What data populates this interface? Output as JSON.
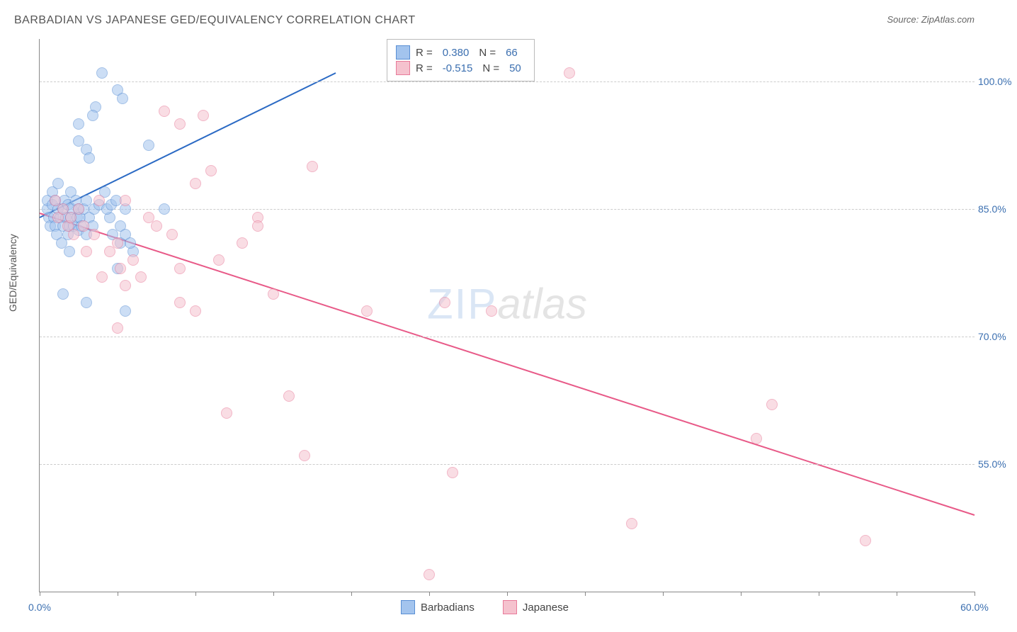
{
  "title": "BARBADIAN VS JAPANESE GED/EQUIVALENCY CORRELATION CHART",
  "source": "Source: ZipAtlas.com",
  "ylabel": "GED/Equivalency",
  "watermark_zip": "ZIP",
  "watermark_atlas": "atlas",
  "chart": {
    "type": "scatter",
    "background_color": "#ffffff",
    "grid_color": "#cccccc",
    "axis_color": "#888888",
    "xlim": [
      0,
      60
    ],
    "ylim": [
      40,
      105
    ],
    "x_ticks": [
      0,
      5,
      10,
      15,
      20,
      25,
      30,
      35,
      40,
      45,
      50,
      55,
      60
    ],
    "x_tick_labels": {
      "0": "0.0%",
      "60": "60.0%"
    },
    "y_gridlines": [
      55,
      70,
      85,
      100
    ],
    "y_tick_labels": {
      "55": "55.0%",
      "70": "70.0%",
      "85": "85.0%",
      "100": "100.0%"
    },
    "tick_label_color": "#3b6fb0",
    "tick_label_fontsize": 14,
    "title_color": "#555555",
    "title_fontsize": 16,
    "marker_radius": 7,
    "marker_opacity": 0.55,
    "series": [
      {
        "name": "Barbadians",
        "fill": "#a3c4ee",
        "stroke": "#5a8fd4",
        "line_color": "#2b6ac4",
        "line_width": 2,
        "r_label": "R =",
        "r_value": "0.380",
        "n_label": "N =",
        "n_value": "66",
        "trend": {
          "x1": 0,
          "y1": 84,
          "x2": 19,
          "y2": 101
        },
        "points": [
          [
            0.5,
            85
          ],
          [
            0.5,
            86
          ],
          [
            0.6,
            84
          ],
          [
            0.7,
            83
          ],
          [
            0.8,
            85.5
          ],
          [
            0.8,
            87
          ],
          [
            0.9,
            84
          ],
          [
            1,
            86
          ],
          [
            1,
            83
          ],
          [
            1.1,
            82
          ],
          [
            1.2,
            85
          ],
          [
            1.2,
            88
          ],
          [
            1.3,
            84
          ],
          [
            1.4,
            81
          ],
          [
            1.5,
            83
          ],
          [
            1.5,
            85
          ],
          [
            1.6,
            86
          ],
          [
            1.7,
            84
          ],
          [
            1.8,
            82
          ],
          [
            1.8,
            85.5
          ],
          [
            1.9,
            83
          ],
          [
            2,
            84
          ],
          [
            2,
            87
          ],
          [
            2.1,
            85
          ],
          [
            2.2,
            83
          ],
          [
            2.3,
            86
          ],
          [
            2.4,
            84
          ],
          [
            2.5,
            82.5
          ],
          [
            2.5,
            85
          ],
          [
            2.6,
            84
          ],
          [
            2.7,
            83
          ],
          [
            2.8,
            85
          ],
          [
            3,
            86
          ],
          [
            3,
            82
          ],
          [
            3.2,
            84
          ],
          [
            3.4,
            83
          ],
          [
            3.5,
            85
          ],
          [
            3.6,
            97
          ],
          [
            4,
            101
          ],
          [
            4.5,
            84
          ],
          [
            4.7,
            82
          ],
          [
            5,
            99
          ],
          [
            5.2,
            83
          ],
          [
            5.2,
            81
          ],
          [
            5.5,
            85
          ],
          [
            5.3,
            98
          ],
          [
            5.5,
            82
          ],
          [
            2.5,
            95
          ],
          [
            3,
            92
          ],
          [
            3.2,
            91
          ],
          [
            1.5,
            75
          ],
          [
            6,
            80
          ],
          [
            5.8,
            81
          ],
          [
            2.5,
            93
          ],
          [
            3.4,
            96
          ],
          [
            5,
            78
          ],
          [
            7,
            92.5
          ],
          [
            4.2,
            87
          ],
          [
            1.9,
            80
          ],
          [
            3,
            74
          ],
          [
            5.5,
            73
          ],
          [
            8,
            85
          ],
          [
            3.8,
            85.5
          ],
          [
            4.3,
            85
          ],
          [
            4.6,
            85.5
          ],
          [
            4.9,
            86
          ]
        ]
      },
      {
        "name": "Japanese",
        "fill": "#f5c2ce",
        "stroke": "#e87b9a",
        "line_color": "#e85a88",
        "line_width": 2,
        "r_label": "R =",
        "r_value": "-0.515",
        "n_label": "N =",
        "n_value": "50",
        "trend": {
          "x1": 0,
          "y1": 84.5,
          "x2": 60,
          "y2": 49
        },
        "points": [
          [
            1,
            86
          ],
          [
            1.2,
            84
          ],
          [
            1.5,
            85
          ],
          [
            1.8,
            83
          ],
          [
            2,
            84
          ],
          [
            2.2,
            82
          ],
          [
            2.5,
            85
          ],
          [
            2.8,
            83
          ],
          [
            3,
            80
          ],
          [
            3.5,
            82
          ],
          [
            4,
            77
          ],
          [
            4.5,
            80
          ],
          [
            5,
            81
          ],
          [
            5.2,
            78
          ],
          [
            5.5,
            76
          ],
          [
            6,
            79
          ],
          [
            6.5,
            77
          ],
          [
            7,
            84
          ],
          [
            7.5,
            83
          ],
          [
            8,
            96.5
          ],
          [
            8.5,
            82
          ],
          [
            9,
            78
          ],
          [
            9,
            74
          ],
          [
            10,
            88
          ],
          [
            10.5,
            96
          ],
          [
            10,
            73
          ],
          [
            11,
            89.5
          ],
          [
            11.5,
            79
          ],
          [
            12,
            61
          ],
          [
            13,
            81
          ],
          [
            14,
            84
          ],
          [
            15,
            75
          ],
          [
            16,
            63
          ],
          [
            17,
            56
          ],
          [
            17.5,
            90
          ],
          [
            25,
            42
          ],
          [
            26,
            74
          ],
          [
            26.5,
            54
          ],
          [
            29,
            73
          ],
          [
            34,
            101
          ],
          [
            38,
            48
          ],
          [
            46,
            58
          ],
          [
            47,
            62
          ],
          [
            53,
            46
          ],
          [
            21,
            73
          ],
          [
            9,
            95
          ],
          [
            5.5,
            86
          ],
          [
            5,
            71
          ],
          [
            3.8,
            86
          ],
          [
            14,
            83
          ]
        ]
      }
    ],
    "legend_label_1": "Barbadians",
    "legend_label_2": "Japanese"
  }
}
